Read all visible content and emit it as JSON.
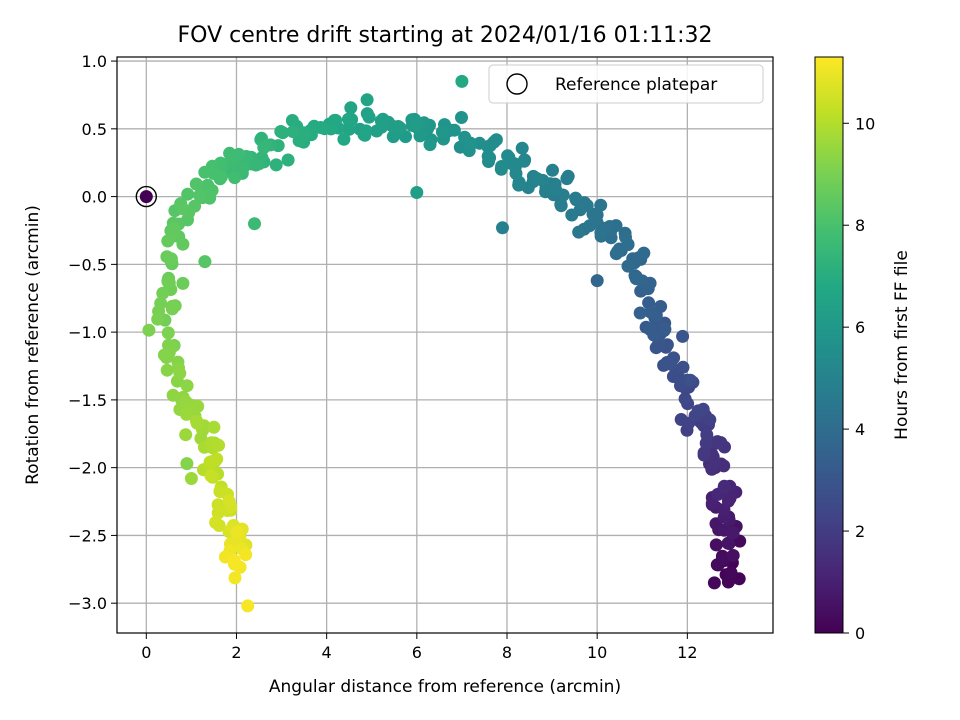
{
  "chart_data": {
    "type": "scatter",
    "title": "FOV centre drift starting at 2024/01/16 01:11:32",
    "xlabel": "Angular distance from reference (arcmin)",
    "ylabel": "Rotation from reference (arcmin)",
    "xlim": [
      -0.65,
      13.9
    ],
    "ylim": [
      -3.22,
      1.03
    ],
    "xticks": [
      0,
      2,
      4,
      6,
      8,
      10,
      12
    ],
    "yticks": [
      -3.0,
      -2.5,
      -2.0,
      -1.5,
      -1.0,
      -0.5,
      0.0,
      0.5,
      1.0
    ],
    "grid": true,
    "legend": {
      "placement": "top-right",
      "entries": [
        "Reference platepar"
      ]
    },
    "colorbar": {
      "label": "Hours from first FF file",
      "range": [
        0,
        11.3
      ],
      "ticks": [
        0,
        2,
        4,
        6,
        8,
        10
      ],
      "colormap": "viridis"
    },
    "reference_point": {
      "x": 0,
      "y": 0,
      "color": "#440154"
    },
    "path": [
      {
        "h": 0.0,
        "x": 12.85,
        "y": -2.8
      },
      {
        "h": 0.6,
        "x": 12.85,
        "y": -2.5
      },
      {
        "h": 1.2,
        "x": 12.75,
        "y": -2.15
      },
      {
        "h": 1.8,
        "x": 12.55,
        "y": -1.8
      },
      {
        "h": 2.3,
        "x": 12.1,
        "y": -1.55
      },
      {
        "h": 2.8,
        "x": 11.7,
        "y": -1.25
      },
      {
        "h": 3.3,
        "x": 11.2,
        "y": -0.85
      },
      {
        "h": 3.8,
        "x": 10.9,
        "y": -0.5
      },
      {
        "h": 4.2,
        "x": 10.3,
        "y": -0.25
      },
      {
        "h": 4.6,
        "x": 9.5,
        "y": -0.05
      },
      {
        "h": 5.0,
        "x": 8.7,
        "y": 0.15
      },
      {
        "h": 5.4,
        "x": 7.8,
        "y": 0.3
      },
      {
        "h": 5.8,
        "x": 6.8,
        "y": 0.45
      },
      {
        "h": 6.2,
        "x": 5.6,
        "y": 0.5
      },
      {
        "h": 6.6,
        "x": 4.6,
        "y": 0.55
      },
      {
        "h": 7.0,
        "x": 3.5,
        "y": 0.45
      },
      {
        "h": 7.4,
        "x": 2.5,
        "y": 0.3
      },
      {
        "h": 7.8,
        "x": 1.7,
        "y": 0.2
      },
      {
        "h": 8.2,
        "x": 1.1,
        "y": 0.0
      },
      {
        "h": 8.6,
        "x": 0.5,
        "y": -0.4
      },
      {
        "h": 9.0,
        "x": 0.4,
        "y": -0.95
      },
      {
        "h": 9.4,
        "x": 0.8,
        "y": -1.4
      },
      {
        "h": 9.8,
        "x": 1.3,
        "y": -1.8
      },
      {
        "h": 10.3,
        "x": 1.6,
        "y": -2.15
      },
      {
        "h": 10.8,
        "x": 2.0,
        "y": -2.5
      },
      {
        "h": 11.2,
        "x": 2.0,
        "y": -2.75
      }
    ],
    "scatter_points": 420,
    "extra_points": [
      {
        "h": 11.2,
        "x": 2.25,
        "y": -3.02
      },
      {
        "h": 0.2,
        "x": 12.6,
        "y": -2.85
      },
      {
        "h": 0.1,
        "x": 13.15,
        "y": -2.82
      },
      {
        "h": 6.3,
        "x": 6.0,
        "y": 0.03
      },
      {
        "h": 6.8,
        "x": 7.0,
        "y": 0.85
      },
      {
        "h": 7.6,
        "x": 2.4,
        "y": -0.2
      },
      {
        "h": 8.3,
        "x": 1.3,
        "y": -0.48
      },
      {
        "h": 4.9,
        "x": 7.9,
        "y": -0.23
      },
      {
        "h": 3.7,
        "x": 10.0,
        "y": -0.62
      },
      {
        "h": 9.2,
        "x": 0.9,
        "y": -1.97
      },
      {
        "h": 9.6,
        "x": 1.0,
        "y": -2.08
      }
    ]
  }
}
